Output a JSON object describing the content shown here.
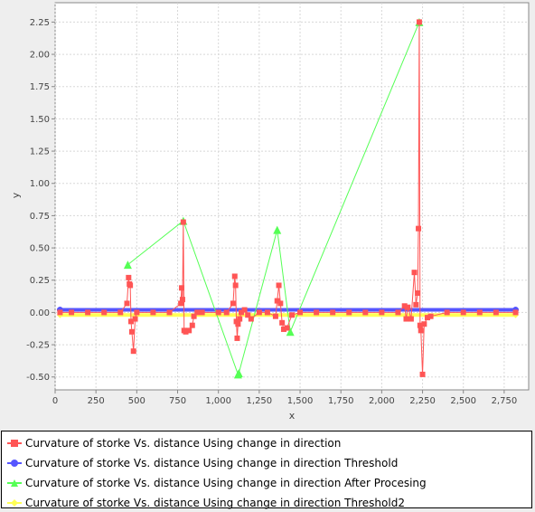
{
  "chart_data": {
    "type": "line",
    "title": "",
    "xlabel": "x",
    "ylabel": "y",
    "xlim": [
      0,
      2900
    ],
    "ylim": [
      -0.6,
      2.4
    ],
    "xticks": [
      0,
      250,
      500,
      750,
      1000,
      1250,
      1500,
      1750,
      2000,
      2250,
      2500,
      2750
    ],
    "xtick_labels": [
      "0",
      "250",
      "500",
      "750",
      "1,000",
      "1,250",
      "1,500",
      "1,750",
      "2,000",
      "2,250",
      "2,500",
      "2,750"
    ],
    "yticks": [
      -0.5,
      -0.25,
      0,
      0.25,
      0.5,
      0.75,
      1.0,
      1.25,
      1.5,
      1.75,
      2.0,
      2.25
    ],
    "ytick_labels": [
      "-0.50",
      "-0.25",
      "0.00",
      "0.25",
      "0.50",
      "0.75",
      "1.00",
      "1.25",
      "1.50",
      "1.75",
      "2.00",
      "2.25"
    ],
    "grid": true,
    "legend_position": "bottom",
    "series": [
      {
        "name": "Curvature of storke Vs. distance Using change in direction",
        "color": "#ff5555",
        "marker": "square",
        "x": [
          30,
          100,
          200,
          300,
          400,
          440,
          450,
          455,
          460,
          465,
          470,
          480,
          490,
          500,
          600,
          700,
          770,
          775,
          780,
          785,
          790,
          800,
          820,
          840,
          850,
          870,
          900,
          1000,
          1050,
          1090,
          1100,
          1105,
          1110,
          1115,
          1120,
          1130,
          1140,
          1160,
          1180,
          1200,
          1250,
          1300,
          1350,
          1360,
          1370,
          1380,
          1390,
          1400,
          1420,
          1450,
          1500,
          1600,
          1700,
          1800,
          1900,
          2000,
          2100,
          2140,
          2150,
          2160,
          2180,
          2200,
          2210,
          2220,
          2225,
          2230,
          2235,
          2240,
          2250,
          2260,
          2280,
          2300,
          2400,
          2500,
          2600,
          2700,
          2820
        ],
        "y": [
          0,
          0,
          0,
          0,
          0,
          0.07,
          0.27,
          0.22,
          0.21,
          -0.07,
          -0.15,
          -0.3,
          -0.05,
          0,
          0,
          0,
          0.07,
          0.19,
          0.1,
          0.7,
          -0.14,
          -0.15,
          -0.14,
          -0.1,
          -0.03,
          0,
          0,
          0,
          0,
          0.07,
          0.28,
          0.21,
          -0.07,
          -0.2,
          -0.09,
          -0.05,
          0,
          0.02,
          -0.02,
          -0.05,
          0,
          0,
          -0.03,
          0.09,
          0.21,
          0.07,
          -0.08,
          -0.13,
          -0.12,
          -0.02,
          0,
          0,
          0,
          0,
          0,
          0,
          0,
          0.05,
          -0.05,
          0.04,
          -0.05,
          0.31,
          0.06,
          0.15,
          0.65,
          2.25,
          -0.1,
          -0.14,
          -0.48,
          -0.09,
          -0.04,
          -0.03,
          0,
          0,
          0,
          0,
          0
        ]
      },
      {
        "name": "Curvature of storke Vs. distance Using change in direction  Threshold",
        "color": "#5555ff",
        "marker": "circle",
        "x": [
          30,
          2820
        ],
        "y": [
          0.02,
          0.02
        ]
      },
      {
        "name": "Curvature of storke Vs. distance Using change in direction  After Procesing",
        "color": "#55ff55",
        "marker": "triangle",
        "x": [
          445,
          785,
          1120,
          1125,
          1360,
          1440,
          2230
        ],
        "y": [
          0.37,
          0.71,
          -0.48,
          -0.47,
          0.64,
          -0.15,
          2.25
        ]
      },
      {
        "name": "Curvature of storke Vs. distance Using change in direction  Threshold2",
        "color": "#ffff55",
        "marker": "diamond",
        "x": [
          30,
          2820
        ],
        "y": [
          -0.02,
          -0.02
        ]
      }
    ]
  }
}
